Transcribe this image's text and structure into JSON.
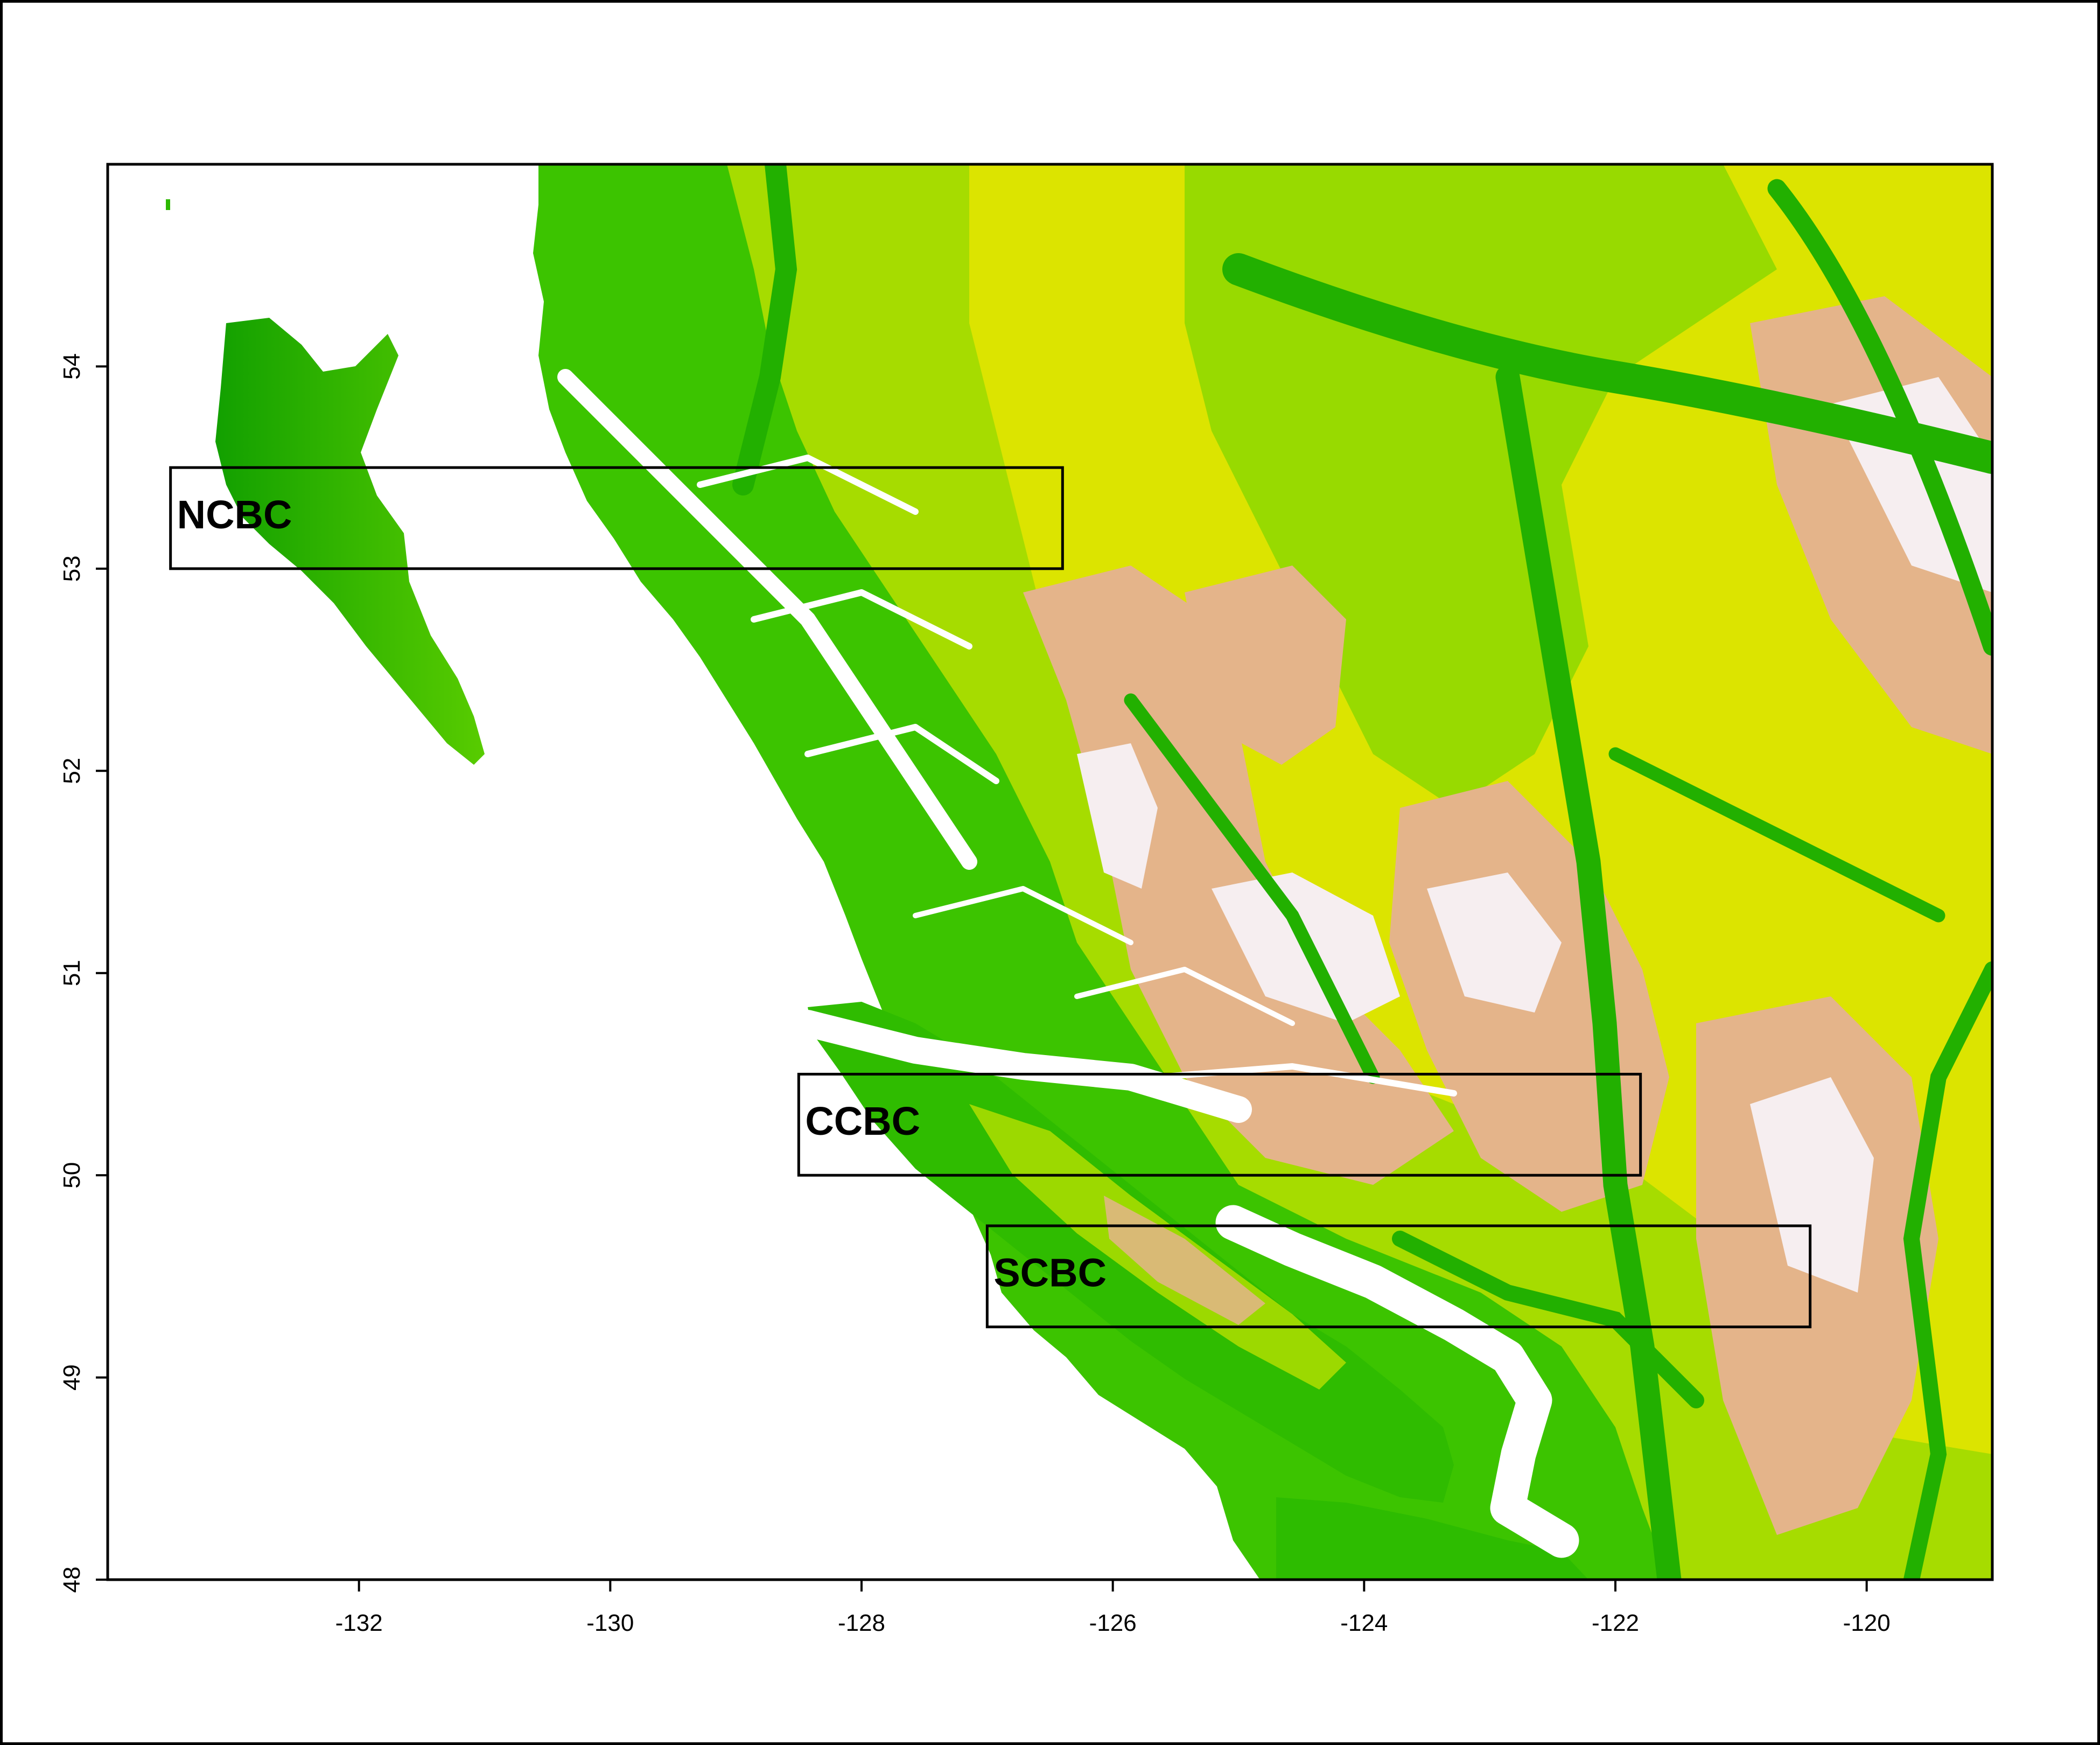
{
  "map": {
    "type": "elevation-raster",
    "legend": "none",
    "colors": {
      "lowland": "#1fb000",
      "lowland_bright": "#3ccc00",
      "mid": "#9bdc00",
      "upland": "#e2e600",
      "high": "#e8b890",
      "peak": "#f5eef0",
      "water": "#ffffff",
      "frame": "#000000"
    },
    "x_axis": {
      "range": [
        -134,
        -119
      ],
      "ticks": [
        {
          "value": -132,
          "label": "-132"
        },
        {
          "value": -130,
          "label": "-130"
        },
        {
          "value": -128,
          "label": "-128"
        },
        {
          "value": -126,
          "label": "-126"
        },
        {
          "value": -124,
          "label": "-124"
        },
        {
          "value": -122,
          "label": "-122"
        },
        {
          "value": -120,
          "label": "-120"
        }
      ]
    },
    "y_axis": {
      "range": [
        48,
        55
      ],
      "ticks": [
        {
          "value": 48,
          "label": "48"
        },
        {
          "value": 49,
          "label": "49"
        },
        {
          "value": 50,
          "label": "50"
        },
        {
          "value": 51,
          "label": "51"
        },
        {
          "value": 52,
          "label": "52"
        },
        {
          "value": 53,
          "label": "53"
        },
        {
          "value": 54,
          "label": "54"
        }
      ]
    },
    "regions": [
      {
        "label": "NCBC",
        "lon_min": -133.5,
        "lon_max": -126.4,
        "lat_min": 53.0,
        "lat_max": 53.5
      },
      {
        "label": "CCBC",
        "lon_min": -128.5,
        "lon_max": -121.8,
        "lat_min": 50.0,
        "lat_max": 50.5
      },
      {
        "label": "SCBC",
        "lon_min": -127.0,
        "lon_max": -120.45,
        "lat_min": 49.25,
        "lat_max": 49.75
      }
    ]
  }
}
